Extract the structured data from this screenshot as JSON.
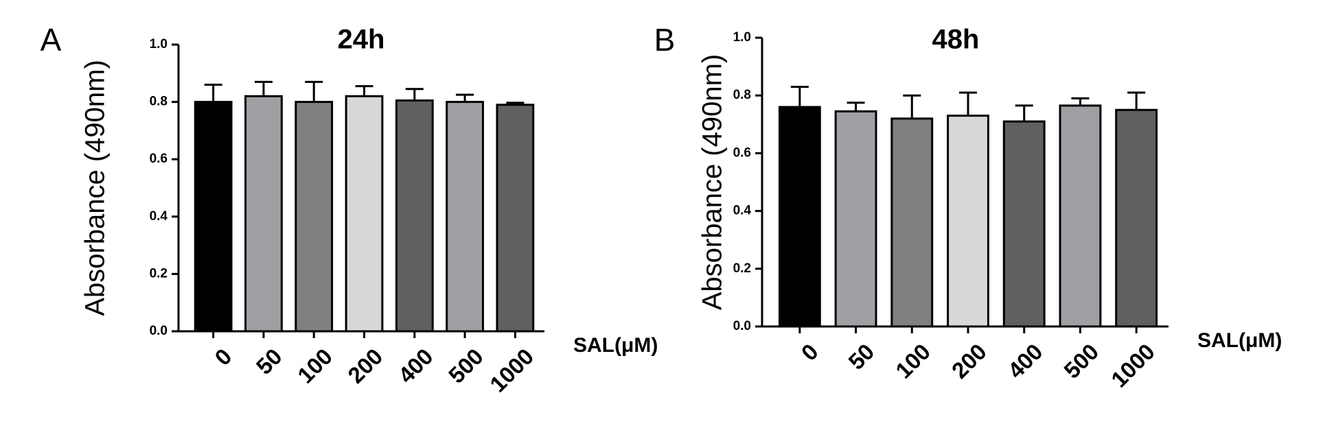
{
  "chart_data": [
    {
      "type": "bar",
      "panel": "A",
      "title": "24h",
      "y_label": "Absorbance (490nm)",
      "x_label": "SAL(μM)",
      "categories": [
        "0",
        "50",
        "100",
        "200",
        "400",
        "500",
        "1000"
      ],
      "values": [
        0.8,
        0.82,
        0.8,
        0.82,
        0.805,
        0.8,
        0.79
      ],
      "errors": [
        0.06,
        0.05,
        0.07,
        0.035,
        0.04,
        0.025,
        0.007
      ],
      "colors": [
        "#000000",
        "#a0a0a4",
        "#808080",
        "#d8d8d8",
        "#606060",
        "#a0a0a4",
        "#606060"
      ],
      "ylim": [
        0,
        1
      ],
      "yticks": [
        {
          "value": 0,
          "label": "0.0"
        },
        0.2,
        0.4,
        0.6,
        0.8,
        {
          "value": 1,
          "label": "1.0"
        }
      ]
    },
    {
      "type": "bar",
      "panel": "B",
      "title": "48h",
      "y_label": "Absorbance (490nm)",
      "x_label": "SAL(μM)",
      "categories": [
        "0",
        "50",
        "100",
        "200",
        "400",
        "500",
        "1000"
      ],
      "values": [
        0.76,
        0.745,
        0.72,
        0.73,
        0.71,
        0.765,
        0.75
      ],
      "errors": [
        0.07,
        0.03,
        0.08,
        0.08,
        0.055,
        0.025,
        0.06
      ],
      "colors": [
        "#000000",
        "#a0a0a4",
        "#808080",
        "#d8d8d8",
        "#606060",
        "#a0a0a4",
        "#606060"
      ],
      "ylim": [
        0,
        1
      ],
      "yticks": [
        {
          "value": 0,
          "label": "0.0"
        },
        0.2,
        0.4,
        0.6,
        0.8,
        {
          "value": 1,
          "label": "1.0"
        }
      ]
    }
  ]
}
